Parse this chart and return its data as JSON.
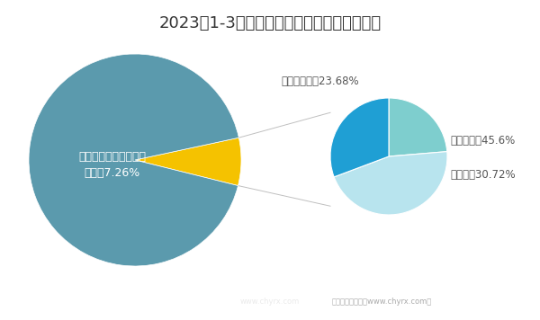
{
  "title": "2023年1-3月四川省累计客运总量分类统计图",
  "title_fontsize": 13,
  "background_color": "#ffffff",
  "left_pie": {
    "values": [
      92.74,
      7.26
    ],
    "colors": [
      "#5b9aad",
      "#f5c200"
    ],
    "label": "四川省客运总量占全国\n比重为7.26%",
    "label_color": "#ffffff",
    "label_fontsize": 9
  },
  "right_pie": {
    "labels": [
      "巡游出租汽车23.68%",
      "公共汽电车45.6%",
      "轨道交通30.72%"
    ],
    "values": [
      23.68,
      45.6,
      30.72
    ],
    "colors": [
      "#7ecece",
      "#b8e4ee",
      "#1f9fd4"
    ],
    "label_fontsize": 8.5
  },
  "connector_color": "#c0c0c0",
  "connector_linewidth": 0.7
}
